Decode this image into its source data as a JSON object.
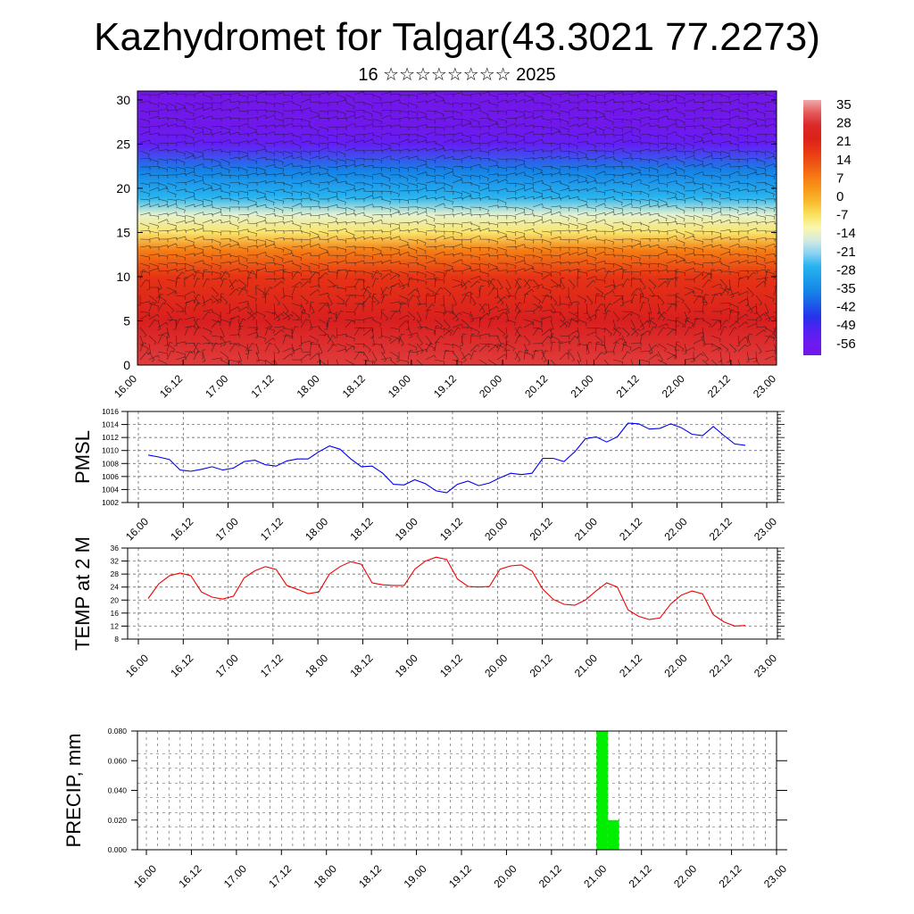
{
  "title": "Kazhydromet for Talgar(43.3021 77.2273)",
  "subtitle": "16 ☆☆☆☆☆☆☆☆ 2025",
  "chart_data": [
    {
      "type": "heatmap",
      "description_axis": "height",
      "ylim": [
        0,
        31
      ],
      "yticks": [
        0,
        5,
        10,
        15,
        20,
        25,
        30
      ],
      "xticks": [
        "16.00",
        "16.12",
        "17.00",
        "17.12",
        "18.00",
        "18.12",
        "19.00",
        "19.12",
        "20.00",
        "20.12",
        "21.00",
        "21.12",
        "22.00",
        "22.12",
        "23.00"
      ],
      "colorbar_labels": [
        "35",
        "28",
        "21",
        "14",
        "7",
        "0",
        "-7",
        "-14",
        "-21",
        "-28",
        "-35",
        "-42",
        "-49",
        "-56"
      ],
      "colorbar_values": [
        35,
        28,
        21,
        14,
        7,
        0,
        -7,
        -14,
        -21,
        -28,
        -35,
        -42,
        -49,
        -56
      ],
      "profile": [
        {
          "h": 0,
          "v": 30
        },
        {
          "h": 5,
          "v": 25
        },
        {
          "h": 10,
          "v": 18
        },
        {
          "h": 13,
          "v": 7
        },
        {
          "h": 15,
          "v": -7
        },
        {
          "h": 17,
          "v": -14
        },
        {
          "h": 19,
          "v": -25
        },
        {
          "h": 22,
          "v": -35
        },
        {
          "h": 25,
          "v": -50
        },
        {
          "h": 27,
          "v": -56
        },
        {
          "h": 31,
          "v": -58
        }
      ]
    },
    {
      "type": "line",
      "ylabel": "PMSL",
      "ylim": [
        1002,
        1016
      ],
      "yticks": [
        "1002",
        "1004",
        "1006",
        "1008",
        "1010",
        "1012",
        "1014",
        "1016"
      ],
      "xticks": [
        "16.00",
        "16.12",
        "17.00",
        "17.12",
        "18.00",
        "18.12",
        "19.00",
        "19.12",
        "20.00",
        "20.12",
        "21.00",
        "21.12",
        "22.00",
        "22.12",
        "23.00"
      ],
      "color": "#0000ee",
      "x": [
        0,
        3,
        6,
        9,
        12,
        15,
        18,
        21,
        24,
        27,
        30,
        33,
        36,
        39,
        42,
        45,
        48,
        51,
        54,
        57,
        60,
        63,
        66,
        69,
        72,
        75,
        78,
        81,
        84,
        87,
        90,
        93,
        96,
        99,
        102,
        105,
        108,
        111,
        114,
        117,
        120,
        123,
        126,
        129,
        132,
        135,
        138,
        141,
        144,
        147,
        150,
        153,
        156,
        159,
        162,
        165,
        168
      ],
      "values": [
        1009.3,
        1009,
        1008.6,
        1007,
        1006.8,
        1007.1,
        1007.5,
        1007,
        1007.3,
        1008.3,
        1008.5,
        1007.8,
        1007.6,
        1008.4,
        1008.7,
        1008.7,
        1009.8,
        1010.7,
        1010.2,
        1008.7,
        1007.5,
        1007.6,
        1006.5,
        1004.8,
        1004.7,
        1005.5,
        1004.9,
        1003.8,
        1003.5,
        1004.8,
        1005.3,
        1004.6,
        1005,
        1005.8,
        1006.5,
        1006.3,
        1006.5,
        1008.8,
        1008.8,
        1008.3,
        1009.8,
        1011.8,
        1012.1,
        1011.3,
        1012.1,
        1014.2,
        1014.1,
        1013.3,
        1013.4,
        1014.1,
        1013.5,
        1012.5,
        1012.3,
        1013.7,
        1012.3,
        1011,
        1010.8
      ]
    },
    {
      "type": "line",
      "ylabel": "TEMP at 2 M",
      "ylim": [
        8,
        36
      ],
      "yticks": [
        "8",
        "12",
        "16",
        "20",
        "24",
        "28",
        "32",
        "36"
      ],
      "xticks": [
        "16.00",
        "16.12",
        "17.00",
        "17.12",
        "18.00",
        "18.12",
        "19.00",
        "19.12",
        "20.00",
        "20.12",
        "21.00",
        "21.12",
        "22.00",
        "22.12",
        "23.00"
      ],
      "color": "#ee0000",
      "x": [
        0,
        3,
        6,
        9,
        12,
        15,
        18,
        21,
        24,
        27,
        30,
        33,
        36,
        39,
        42,
        45,
        48,
        51,
        54,
        57,
        60,
        63,
        66,
        69,
        72,
        75,
        78,
        81,
        84,
        87,
        90,
        93,
        96,
        99,
        102,
        105,
        108,
        111,
        114,
        117,
        120,
        123,
        126,
        129,
        132,
        135,
        138,
        141,
        144,
        147,
        150,
        153,
        156,
        159,
        162,
        165,
        168
      ],
      "values": [
        20.5,
        25,
        27.5,
        28.3,
        27.5,
        22.5,
        20.9,
        20.3,
        21.2,
        26.8,
        29,
        30.3,
        29.4,
        24.5,
        23.3,
        22,
        22.5,
        28,
        30.3,
        31.8,
        31,
        25.3,
        24.7,
        24.5,
        24.5,
        29.5,
        32,
        33.2,
        32.5,
        26.5,
        24.2,
        24,
        24.2,
        29.5,
        30.5,
        30.8,
        28.9,
        23.4,
        20.2,
        18.7,
        18.4,
        20,
        22.8,
        25.3,
        24,
        17,
        15,
        14,
        14.5,
        18.8,
        21.5,
        22.8,
        21.9,
        15.5,
        13.3,
        12,
        12.2
      ]
    },
    {
      "type": "bar",
      "ylabel": "PRECIP, mm",
      "ylim": [
        0,
        0.08
      ],
      "yticks": [
        "0.000",
        "0.020",
        "0.040",
        "0.060",
        "0.080"
      ],
      "xticks": [
        "16.00",
        "16.12",
        "17.00",
        "17.12",
        "18.00",
        "18.12",
        "19.00",
        "19.12",
        "20.00",
        "20.12",
        "21.00",
        "21.12",
        "22.00",
        "22.12",
        "23.00"
      ],
      "color": "#00ee00",
      "bars": [
        {
          "x0": 120,
          "x1": 123,
          "value": 0.08
        },
        {
          "x0": 123,
          "x1": 126,
          "value": 0.02
        }
      ]
    }
  ]
}
